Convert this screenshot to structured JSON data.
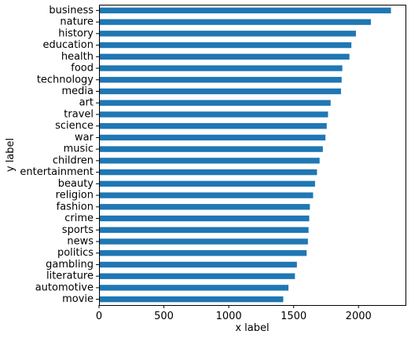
{
  "chart_data": {
    "type": "bar",
    "orientation": "horizontal",
    "categories": [
      "business",
      "nature",
      "history",
      "education",
      "health",
      "food",
      "technology",
      "media",
      "art",
      "travel",
      "science",
      "war",
      "music",
      "children",
      "entertainment",
      "beauty",
      "religion",
      "fashion",
      "crime",
      "sports",
      "news",
      "politics",
      "gambling",
      "literature",
      "automotive",
      "movie"
    ],
    "values": [
      2250,
      2095,
      1980,
      1945,
      1930,
      1875,
      1870,
      1865,
      1785,
      1765,
      1755,
      1745,
      1725,
      1700,
      1680,
      1665,
      1650,
      1625,
      1620,
      1615,
      1610,
      1600,
      1525,
      1510,
      1460,
      1420
    ],
    "xlabel": "x label",
    "ylabel": "y label",
    "xlim": [
      0,
      2362
    ],
    "xticks": [
      0,
      500,
      1000,
      1500,
      2000
    ],
    "grid": false,
    "bar_color": "#1f77b4"
  }
}
